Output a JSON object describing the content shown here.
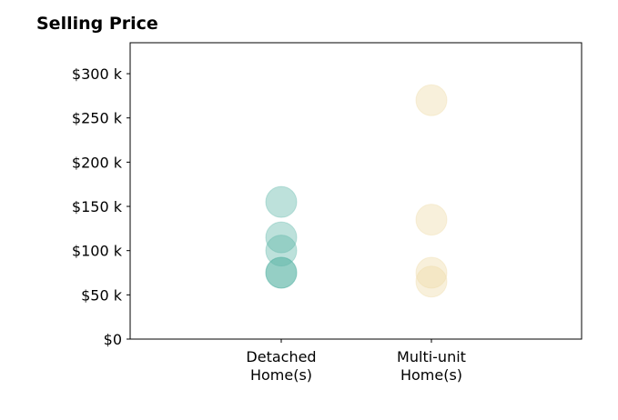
{
  "chart_data": {
    "type": "scatter",
    "title": "Selling Price",
    "categories": [
      [
        "Detached",
        "Home(s)"
      ],
      [
        "Multi-unit",
        "Home(s)"
      ]
    ],
    "series": [
      {
        "category_index": 0,
        "values": [
          155000,
          115000,
          100000,
          75000,
          75000
        ],
        "color": "#5ab4a6"
      },
      {
        "category_index": 1,
        "values": [
          270000,
          135000,
          75000,
          65000
        ],
        "color": "#eed9a4"
      }
    ],
    "ylim": [
      0,
      335000
    ],
    "y_ticks": [
      0,
      50000,
      100000,
      150000,
      200000,
      250000,
      300000
    ],
    "y_tick_labels": [
      "$0",
      "$50 k",
      "$100 k",
      "$150 k",
      "$200 k",
      "$250 k",
      "$300 k"
    ],
    "xlabel": "",
    "ylabel": "",
    "grid": false,
    "legend": "none"
  }
}
